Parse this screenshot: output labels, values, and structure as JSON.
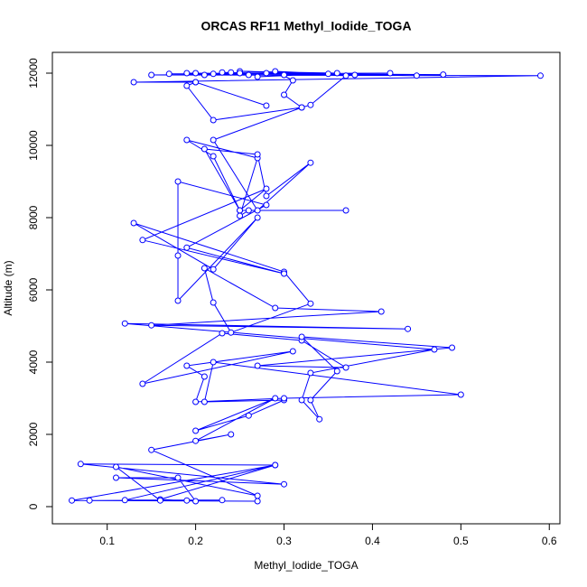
{
  "chart_data": {
    "type": "line",
    "title": "ORCAS RF11 Methyl_Iodide_TOGA",
    "x_label": "Methyl_Iodide_TOGA",
    "y_label": "Altitude (m)",
    "color": "#0000ff",
    "markers": true,
    "x": [
      0.27,
      0.06,
      0.29,
      0.07,
      0.3,
      0.11,
      0.18,
      0.2,
      0.16,
      0.29,
      0.12,
      0.23,
      0.08,
      0.19,
      0.16,
      0.11,
      0.27,
      0.15,
      0.24,
      0.2,
      0.29,
      0.2,
      0.26,
      0.3,
      0.21,
      0.22,
      0.5,
      0.3,
      0.2,
      0.21,
      0.19,
      0.31,
      0.14,
      0.23,
      0.32,
      0.37,
      0.27,
      0.49,
      0.32,
      0.36,
      0.33,
      0.34,
      0.32,
      0.33,
      0.47,
      0.12,
      0.44,
      0.15,
      0.41,
      0.29,
      0.21,
      0.22,
      0.24,
      0.33,
      0.3,
      0.13,
      0.22,
      0.27,
      0.18,
      0.18,
      0.18,
      0.28,
      0.19,
      0.3,
      0.14,
      0.28,
      0.25,
      0.37,
      0.26,
      0.25,
      0.27,
      0.19,
      0.22,
      0.25,
      0.21,
      0.27,
      0.28,
      0.33,
      0.27,
      0.22,
      0.32,
      0.22,
      0.19,
      0.2,
      0.28,
      0.2,
      0.13,
      0.59,
      0.15,
      0.42,
      0.17,
      0.48,
      0.19,
      0.45,
      0.23,
      0.38,
      0.25,
      0.36,
      0.27,
      0.35,
      0.29,
      0.31,
      0.3,
      0.32,
      0.33,
      0.37,
      0.25,
      0.24,
      0.22,
      0.2,
      0.21,
      0.26,
      0.28,
      0.3
    ],
    "values": [
      150,
      170,
      1150,
      1180,
      620,
      800,
      800,
      150,
      200,
      1150,
      180,
      180,
      170,
      170,
      170,
      1100,
      300,
      1570,
      2000,
      1820,
      3000,
      2100,
      2520,
      2950,
      2900,
      4000,
      3100,
      3000,
      2900,
      3600,
      3900,
      4300,
      3400,
      4800,
      4600,
      3850,
      3900,
      4400,
      4700,
      3750,
      2950,
      2420,
      2950,
      3700,
      4350,
      5070,
      4920,
      5020,
      5400,
      5500,
      6600,
      5650,
      4820,
      5620,
      6500,
      7850,
      6570,
      8000,
      5700,
      6950,
      9000,
      8350,
      7170,
      6450,
      7380,
      8800,
      8200,
      8200,
      8200,
      8050,
      9650,
      10150,
      9700,
      8200,
      9900,
      9750,
      8600,
      9520,
      8200,
      10150,
      11050,
      10700,
      11650,
      11750,
      11100,
      11750,
      11750,
      11930,
      11950,
      12000,
      11980,
      11960,
      12000,
      11930,
      12020,
      11950,
      12050,
      12000,
      11900,
      11980,
      12050,
      11800,
      11400,
      11050,
      11120,
      11930,
      12000,
      12020,
      11980,
      12000,
      11950,
      11950,
      12000,
      11950
    ],
    "xlim": [
      0.038,
      0.612
    ],
    "ylim": [
      -475,
      12575
    ],
    "xticks": [
      0.1,
      0.2,
      0.3,
      0.4,
      0.5,
      0.6
    ],
    "yticks": [
      0,
      2000,
      4000,
      6000,
      8000,
      10000,
      12000
    ]
  }
}
